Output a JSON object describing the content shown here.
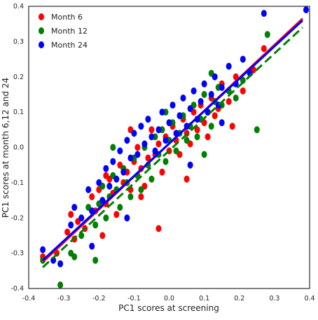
{
  "chart_data": {
    "type": "scatter",
    "xlabel": "PC1 scores at screening",
    "ylabel": "PC1 scores at month 6,12 and 24",
    "xlim": [
      -0.4,
      0.4
    ],
    "ylim": [
      -0.4,
      0.4
    ],
    "xticks": [
      -0.4,
      -0.3,
      -0.2,
      -0.1,
      0.0,
      0.1,
      0.2,
      0.3,
      0.4
    ],
    "yticks": [
      -0.4,
      -0.3,
      -0.2,
      -0.1,
      0.0,
      0.1,
      0.2,
      0.3,
      0.4
    ],
    "xtick_labels": [
      "-0.4",
      "-0.3",
      "-0.2",
      "-0.1",
      "0.0",
      "0.1",
      "0.2",
      "0.3",
      "0.4"
    ],
    "ytick_labels": [
      "-0.4",
      "-0.3",
      "-0.2",
      "-0.1",
      "0.0",
      "0.1",
      "0.2",
      "0.3",
      "0.4"
    ],
    "grid": false,
    "legend_position": "top-left",
    "series": [
      {
        "name": "Month 6",
        "color": "#ff0000",
        "fit": {
          "x": [
            -0.36,
            0.38
          ],
          "y": [
            -0.325,
            0.365
          ],
          "style": "solid"
        },
        "points": [
          [
            -0.36,
            -0.31
          ],
          [
            -0.32,
            -0.3
          ],
          [
            -0.29,
            -0.24
          ],
          [
            -0.28,
            -0.19
          ],
          [
            -0.27,
            -0.26
          ],
          [
            -0.26,
            -0.21
          ],
          [
            -0.24,
            -0.23
          ],
          [
            -0.22,
            -0.14
          ],
          [
            -0.21,
            -0.18
          ],
          [
            -0.2,
            -0.12
          ],
          [
            -0.19,
            -0.25
          ],
          [
            -0.18,
            -0.16
          ],
          [
            -0.17,
            -0.09
          ],
          [
            -0.16,
            -0.13
          ],
          [
            -0.15,
            -0.19
          ],
          [
            -0.14,
            -0.05
          ],
          [
            -0.13,
            -0.1
          ],
          [
            -0.12,
            -0.07
          ],
          [
            -0.11,
            -0.12
          ],
          [
            -0.1,
            -0.04
          ],
          [
            -0.09,
            0.0
          ],
          [
            -0.08,
            -0.06
          ],
          [
            -0.07,
            -0.11
          ],
          [
            -0.06,
            -0.03
          ],
          [
            -0.05,
            0.05
          ],
          [
            -0.04,
            -0.02
          ],
          [
            -0.03,
            0.01
          ],
          [
            -0.02,
            -0.07
          ],
          [
            -0.01,
            0.03
          ],
          [
            0.0,
            -0.01
          ],
          [
            0.01,
            0.06
          ],
          [
            0.02,
            0.02
          ],
          [
            0.03,
            -0.02
          ],
          [
            0.04,
            0.08
          ],
          [
            0.05,
            0.04
          ],
          [
            0.06,
            0.01
          ],
          [
            0.07,
            0.1
          ],
          [
            0.08,
            0.05
          ],
          [
            0.09,
            0.12
          ],
          [
            0.1,
            0.07
          ],
          [
            0.11,
            0.03
          ],
          [
            0.12,
            0.14
          ],
          [
            0.13,
            0.09
          ],
          [
            0.14,
            0.11
          ],
          [
            0.15,
            0.18
          ],
          [
            0.17,
            0.13
          ],
          [
            0.19,
            0.2
          ],
          [
            0.21,
            0.16
          ],
          [
            0.24,
            0.22
          ],
          [
            0.27,
            0.28
          ],
          [
            -0.03,
            -0.23
          ],
          [
            0.18,
            0.06
          ],
          [
            -0.18,
            -0.08
          ],
          [
            0.05,
            -0.09
          ],
          [
            -0.11,
            0.05
          ],
          [
            -0.08,
            -0.14
          ]
        ]
      },
      {
        "name": "Month 12",
        "color": "#008000",
        "fit": {
          "x": [
            -0.36,
            0.38
          ],
          "y": [
            -0.34,
            0.34
          ],
          "style": "dashed"
        },
        "points": [
          [
            -0.36,
            -0.32
          ],
          [
            -0.31,
            -0.39
          ],
          [
            -0.28,
            -0.3
          ],
          [
            -0.27,
            -0.31
          ],
          [
            -0.25,
            -0.25
          ],
          [
            -0.23,
            -0.17
          ],
          [
            -0.21,
            -0.22
          ],
          [
            -0.2,
            -0.16
          ],
          [
            -0.19,
            -0.11
          ],
          [
            -0.18,
            -0.2
          ],
          [
            -0.17,
            -0.14
          ],
          [
            -0.16,
            -0.08
          ],
          [
            -0.15,
            -0.12
          ],
          [
            -0.14,
            -0.17
          ],
          [
            -0.13,
            -0.06
          ],
          [
            -0.12,
            -0.1
          ],
          [
            -0.11,
            -0.14
          ],
          [
            -0.1,
            -0.03
          ],
          [
            -0.09,
            -0.08
          ],
          [
            -0.08,
            -0.12
          ],
          [
            -0.07,
            0.0
          ],
          [
            -0.06,
            -0.05
          ],
          [
            -0.05,
            -0.09
          ],
          [
            -0.04,
            0.03
          ],
          [
            -0.03,
            -0.02
          ],
          [
            -0.02,
            0.05
          ],
          [
            -0.01,
            -0.04
          ],
          [
            0.0,
            0.02
          ],
          [
            0.01,
            0.07
          ],
          [
            0.02,
            -0.01
          ],
          [
            0.03,
            0.04
          ],
          [
            0.04,
            0.09
          ],
          [
            0.05,
            0.02
          ],
          [
            0.06,
            0.06
          ],
          [
            0.07,
            0.12
          ],
          [
            0.08,
            0.03
          ],
          [
            0.09,
            0.08
          ],
          [
            0.1,
            0.15
          ],
          [
            0.11,
            0.1
          ],
          [
            0.12,
            0.06
          ],
          [
            0.13,
            0.13
          ],
          [
            0.14,
            0.17
          ],
          [
            0.15,
            0.12
          ],
          [
            0.17,
            0.16
          ],
          [
            0.19,
            0.14
          ],
          [
            0.21,
            0.19
          ],
          [
            0.23,
            0.21
          ],
          [
            0.25,
            0.05
          ],
          [
            0.28,
            0.32
          ],
          [
            -0.21,
            -0.32
          ],
          [
            -0.01,
            0.1
          ],
          [
            0.1,
            -0.02
          ],
          [
            -0.16,
            0.0
          ],
          [
            0.12,
            0.21
          ]
        ]
      },
      {
        "name": "Month 24",
        "color": "#0000ff",
        "fit": {
          "x": [
            -0.36,
            0.38
          ],
          "y": [
            -0.32,
            0.36
          ],
          "style": "solid"
        },
        "points": [
          [
            -0.36,
            -0.29
          ],
          [
            -0.33,
            -0.32
          ],
          [
            -0.31,
            -0.33
          ],
          [
            -0.28,
            -0.22
          ],
          [
            -0.27,
            -0.17
          ],
          [
            -0.25,
            -0.2
          ],
          [
            -0.23,
            -0.12
          ],
          [
            -0.22,
            -0.18
          ],
          [
            -0.2,
            -0.1
          ],
          [
            -0.19,
            -0.15
          ],
          [
            -0.18,
            -0.06
          ],
          [
            -0.17,
            -0.11
          ],
          [
            -0.16,
            -0.04
          ],
          [
            -0.15,
            -0.09
          ],
          [
            -0.14,
            -0.01
          ],
          [
            -0.13,
            -0.07
          ],
          [
            -0.12,
            0.02
          ],
          [
            -0.11,
            -0.03
          ],
          [
            -0.1,
            0.04
          ],
          [
            -0.09,
            -0.02
          ],
          [
            -0.08,
            0.06
          ],
          [
            -0.07,
            0.01
          ],
          [
            -0.06,
            0.08
          ],
          [
            -0.05,
            0.03
          ],
          [
            -0.04,
            -0.01
          ],
          [
            -0.03,
            0.05
          ],
          [
            -0.02,
            0.1
          ],
          [
            -0.01,
            0.02
          ],
          [
            0.0,
            0.07
          ],
          [
            0.01,
            0.12
          ],
          [
            0.02,
            0.04
          ],
          [
            0.03,
            0.09
          ],
          [
            0.04,
            0.14
          ],
          [
            0.05,
            0.06
          ],
          [
            0.06,
            0.11
          ],
          [
            0.07,
            0.16
          ],
          [
            0.08,
            0.08
          ],
          [
            0.09,
            0.13
          ],
          [
            0.1,
            0.18
          ],
          [
            0.11,
            0.1
          ],
          [
            0.12,
            0.15
          ],
          [
            0.13,
            0.2
          ],
          [
            0.14,
            0.12
          ],
          [
            0.15,
            0.17
          ],
          [
            0.17,
            0.23
          ],
          [
            0.19,
            0.18
          ],
          [
            0.21,
            0.25
          ],
          [
            0.23,
            0.21
          ],
          [
            0.27,
            0.38
          ],
          [
            0.39,
            0.39
          ],
          [
            -0.22,
            -0.28
          ],
          [
            0.06,
            -0.05
          ],
          [
            -0.12,
            -0.2
          ],
          [
            0.15,
            0.07
          ]
        ]
      }
    ]
  }
}
